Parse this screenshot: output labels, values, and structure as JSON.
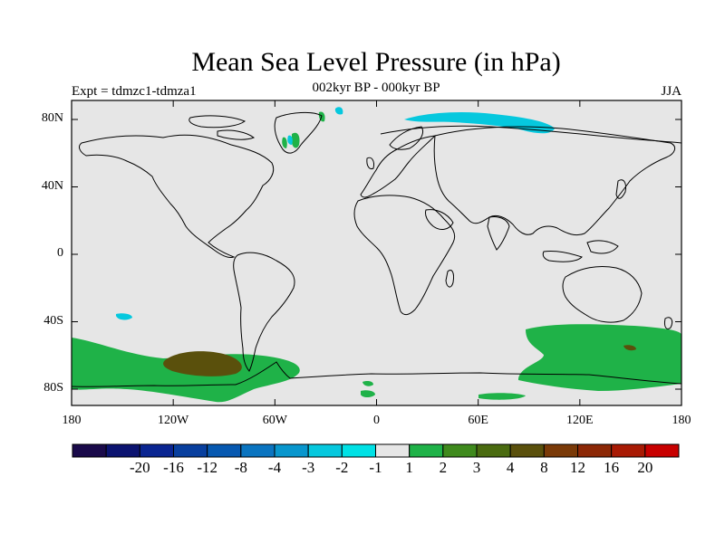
{
  "title": "Mean Sea Level Pressure (in hPa)",
  "subtitle": "002kyr BP - 000kyr BP",
  "left_label": "Expt = tdmzc1-tdmza1",
  "right_label": "JJA",
  "y_ticks": [
    {
      "label": "80N",
      "lat": 80
    },
    {
      "label": "40N",
      "lat": 40
    },
    {
      "label": "0",
      "lat": 0
    },
    {
      "label": "40S",
      "lat": -40
    },
    {
      "label": "80S",
      "lat": -80
    }
  ],
  "x_ticks": [
    {
      "label": "180",
      "lon": -180
    },
    {
      "label": "120W",
      "lon": -120
    },
    {
      "label": "60W",
      "lon": -60
    },
    {
      "label": "0",
      "lon": 0
    },
    {
      "label": "60E",
      "lon": 60
    },
    {
      "label": "120E",
      "lon": 120
    },
    {
      "label": "180",
      "lon": 180
    }
  ],
  "colorbar": {
    "colors": [
      "#1a0a4a",
      "#0b1370",
      "#0a2591",
      "#083f9e",
      "#0658b0",
      "#0a74c0",
      "#0896cd",
      "#06c8de",
      "#00e1e5",
      "#e6e6e6",
      "#1fb248",
      "#3f8a1d",
      "#4a6b10",
      "#5a500c",
      "#7a3a08",
      "#8c2806",
      "#a81a04",
      "#c80000"
    ],
    "labels": [
      "-20",
      "-16",
      "-12",
      "-8",
      "-4",
      "-3",
      "-2",
      "-1",
      "1",
      "2",
      "3",
      "4",
      "8",
      "12",
      "16",
      "20"
    ]
  },
  "colors": {
    "ocean_background": "#e6e6e6",
    "positive_1_2": "#1fb248",
    "positive_3_4": "#5a500c",
    "negative_1_2": "#06c8de",
    "coastline": "#000000"
  }
}
